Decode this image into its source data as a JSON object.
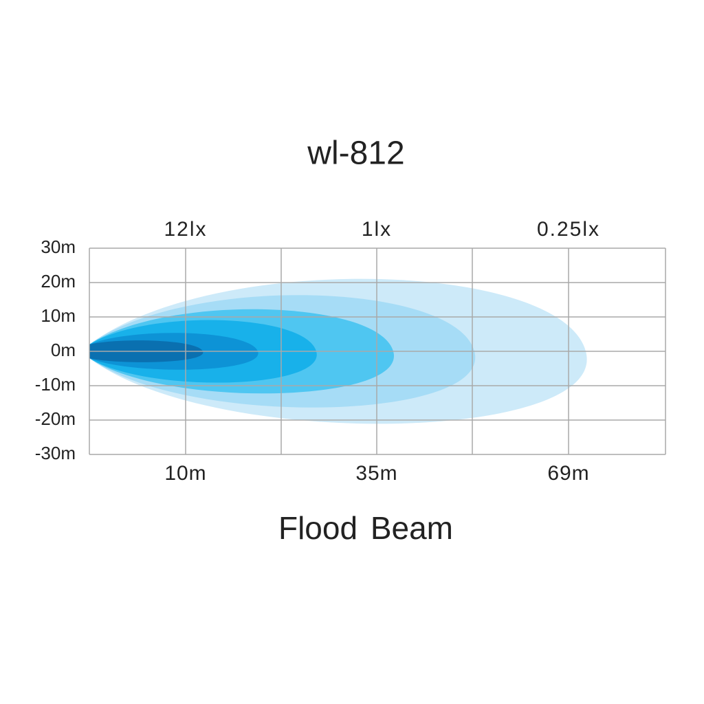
{
  "title": "wl-812",
  "y_labels": [
    "30m",
    "20m",
    "10m",
    "0m",
    "-10m",
    "-20m",
    "-30m"
  ],
  "top_labels": [
    "12lx",
    "1lx",
    "0.25lx"
  ],
  "bottom_labels": [
    "10m",
    "35m",
    "69m"
  ],
  "caption": "Flood Beam"
}
